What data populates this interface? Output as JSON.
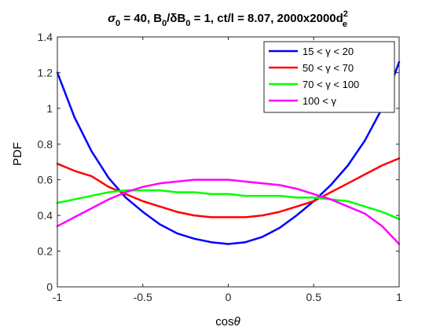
{
  "chart_data": {
    "type": "line",
    "title": {
      "sigma": "σ",
      "sigma_sub": "0",
      "p1": " = 40, B",
      "b_sub": "0",
      "p2": "/δB",
      "b2_sub": "0",
      "p3": " = 1, ct/l = 8.07, 2000x2000d",
      "d_sup": "2",
      "d_sub": "e"
    },
    "xlabel": {
      "text": "cos",
      "theta": "θ"
    },
    "ylabel": "PDF",
    "xlim": [
      -1,
      1
    ],
    "ylim": [
      0,
      1.4
    ],
    "xticks": [
      -1,
      -0.5,
      0,
      0.5,
      1
    ],
    "xtick_labels": [
      "-1",
      "-0.5",
      "0",
      "0.5",
      "1"
    ],
    "yticks": [
      0,
      0.2,
      0.4,
      0.6,
      0.8,
      1,
      1.2,
      1.4
    ],
    "ytick_labels": [
      "0",
      "0.2",
      "0.4",
      "0.6",
      "0.8",
      "1",
      "1.2",
      "1.4"
    ],
    "grid": false,
    "legend_position": "top-right",
    "x": [
      -1,
      -0.9,
      -0.8,
      -0.7,
      -0.6,
      -0.5,
      -0.4,
      -0.3,
      -0.2,
      -0.1,
      0,
      0.1,
      0.2,
      0.3,
      0.4,
      0.5,
      0.6,
      0.7,
      0.8,
      0.9,
      1
    ],
    "series": [
      {
        "name": "15 < γ < 20",
        "color": "#0000ff",
        "values": [
          1.2,
          0.95,
          0.76,
          0.61,
          0.5,
          0.42,
          0.35,
          0.3,
          0.27,
          0.25,
          0.24,
          0.25,
          0.28,
          0.33,
          0.4,
          0.48,
          0.57,
          0.68,
          0.82,
          1.0,
          1.26
        ]
      },
      {
        "name": "50 < γ < 70",
        "color": "#ff0000",
        "values": [
          0.69,
          0.65,
          0.62,
          0.56,
          0.52,
          0.48,
          0.45,
          0.42,
          0.4,
          0.39,
          0.39,
          0.39,
          0.4,
          0.42,
          0.45,
          0.48,
          0.53,
          0.58,
          0.63,
          0.68,
          0.72
        ]
      },
      {
        "name": "70 < γ < 100",
        "color": "#00ff00",
        "values": [
          0.47,
          0.49,
          0.51,
          0.53,
          0.54,
          0.54,
          0.54,
          0.53,
          0.53,
          0.52,
          0.52,
          0.51,
          0.51,
          0.51,
          0.5,
          0.5,
          0.49,
          0.48,
          0.45,
          0.42,
          0.38
        ]
      },
      {
        "name": "100 < γ",
        "color": "#ff00ff",
        "values": [
          0.34,
          0.39,
          0.44,
          0.49,
          0.53,
          0.56,
          0.58,
          0.59,
          0.6,
          0.6,
          0.6,
          0.59,
          0.58,
          0.57,
          0.55,
          0.52,
          0.49,
          0.45,
          0.41,
          0.34,
          0.24
        ]
      }
    ]
  }
}
